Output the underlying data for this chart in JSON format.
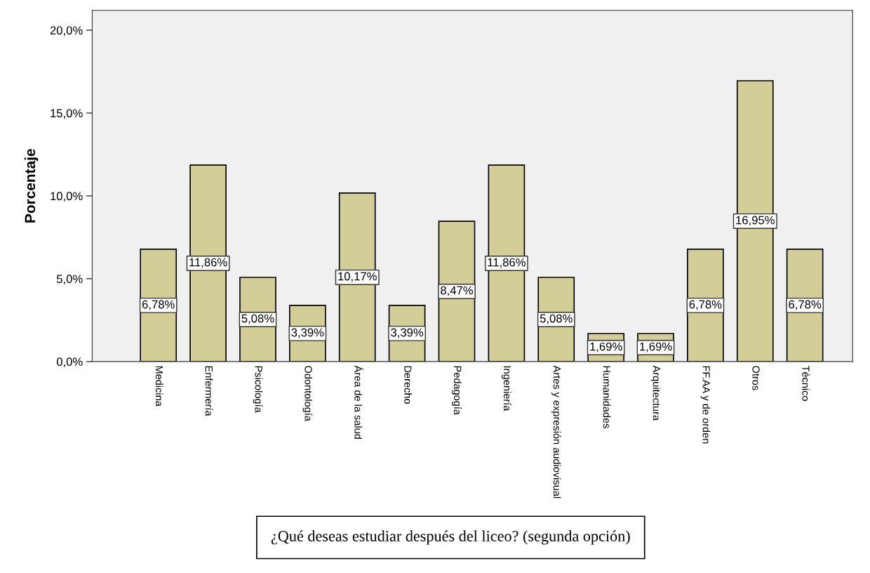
{
  "chart_data": {
    "type": "bar",
    "ylabel": "Porcentaje",
    "categories": [
      "Medicina",
      "Enfermería",
      "Psicología",
      "Odontología",
      "Área de la salud",
      "Derecho",
      "Pedagogía",
      "Ingeniería",
      "Artes y expresión audiovisual",
      "Humanidades",
      "Arquitectura",
      "FF.AA y de orden",
      "Otros",
      "Técnico"
    ],
    "values": [
      6.78,
      11.86,
      5.08,
      3.39,
      10.17,
      3.39,
      8.47,
      11.86,
      5.08,
      1.69,
      1.69,
      6.78,
      16.95,
      6.78
    ],
    "value_labels": [
      "6,78%",
      "11,86%",
      "5,08%",
      "3,39%",
      "10,17%",
      "3,39%",
      "8,47%",
      "11,86%",
      "5,08%",
      "1,69%",
      "1,69%",
      "6,78%",
      "16,95%",
      "6,78%"
    ],
    "color": "#d3ce98",
    "ylim": [
      0,
      21.2
    ],
    "yticks": [
      {
        "value": 0,
        "label": "0,0%"
      },
      {
        "value": 5,
        "label": "5,0%"
      },
      {
        "value": 10,
        "label": "10,0%"
      },
      {
        "value": 15,
        "label": "15,0%"
      },
      {
        "value": 20,
        "label": "20,0%"
      }
    ],
    "annotations": [
      "¿Qué deseas estudiar después del liceo? (segunda opción)"
    ],
    "grid": false,
    "legend": false
  }
}
